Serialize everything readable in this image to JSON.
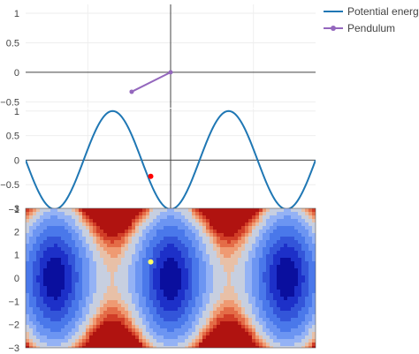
{
  "legend": {
    "items": [
      {
        "label": "Potential energy",
        "color": "#1f77b4",
        "marker": false
      },
      {
        "label": "Pendulum",
        "color": "#9467bd",
        "marker": true
      }
    ]
  },
  "chart_data": [
    {
      "type": "line",
      "panel": "pendulum",
      "xlim": [
        -1.75,
        1.75
      ],
      "ylim": [
        -0.6,
        1.15
      ],
      "yticks": [
        {
          "value": 1,
          "label": "1"
        },
        {
          "value": 0.5,
          "label": "0.5"
        },
        {
          "value": 0,
          "label": "0"
        },
        {
          "value": -0.5,
          "label": "−0.5"
        }
      ],
      "grid": true,
      "series": [
        {
          "name": "Pendulum",
          "color": "#9467bd",
          "x": [
            0,
            -0.47
          ],
          "y": [
            0,
            -0.33
          ]
        }
      ]
    },
    {
      "type": "line",
      "panel": "potential",
      "xlim": [
        -1.75,
        1.75
      ],
      "ylim": [
        -1.0,
        1.05
      ],
      "yticks": [
        {
          "value": 1,
          "label": "1"
        },
        {
          "value": 0.5,
          "label": "0.5"
        },
        {
          "value": 0,
          "label": "0"
        },
        {
          "value": -0.5,
          "label": "−0.5"
        },
        {
          "value": -1,
          "label": "−1"
        }
      ],
      "grid": true,
      "series": [
        {
          "name": "Potential energy",
          "color": "#1f77b4",
          "function": "-cos(2*pi*x/1.4) over x in [-1.75, 1.75]"
        }
      ],
      "marker": {
        "x": -0.24,
        "y": -0.33,
        "color": "#ff0000"
      }
    },
    {
      "type": "heatmap",
      "panel": "phase-space",
      "xlim": [
        -1.75,
        1.75
      ],
      "ylim": [
        -3,
        3
      ],
      "yticks": [
        {
          "value": 3,
          "label": "3"
        },
        {
          "value": 2,
          "label": "2"
        },
        {
          "value": 1,
          "label": "1"
        },
        {
          "value": 0,
          "label": "0"
        },
        {
          "value": -1,
          "label": "−1"
        },
        {
          "value": -2,
          "label": "−2"
        },
        {
          "value": -3,
          "label": "−3"
        }
      ],
      "colorscale": [
        "#0a0f9e",
        "#1d30c8",
        "#3355d9",
        "#4a78ea",
        "#6c95f2",
        "#94b2f5",
        "#c7cfe0",
        "#e8c0a7",
        "#ef9a72",
        "#e46c47",
        "#d13d27",
        "#b01310"
      ],
      "marker": {
        "x": -0.24,
        "y": 0.7,
        "color": "#ffff66"
      }
    }
  ]
}
